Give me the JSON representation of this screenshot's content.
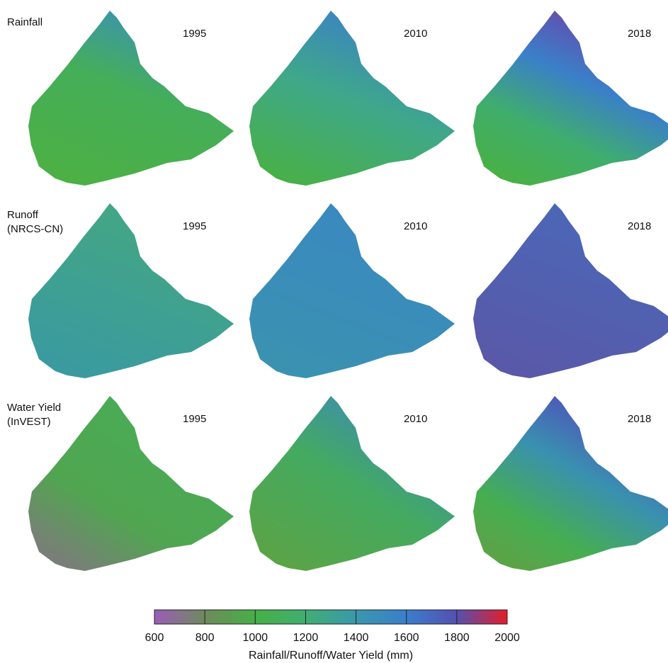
{
  "rows": [
    {
      "label": [
        "Rainfall"
      ],
      "maps": [
        {
          "year": "1995"
        },
        {
          "year": "2010"
        },
        {
          "year": "2018"
        }
      ]
    },
    {
      "label": [
        "Runoff",
        "(NRCS-CN)"
      ],
      "maps": [
        {
          "year": "1995"
        },
        {
          "year": "2010"
        },
        {
          "year": "2018"
        }
      ]
    },
    {
      "label": [
        "Water Yield",
        "(InVEST)"
      ],
      "maps": [
        {
          "year": "1995"
        },
        {
          "year": "2010"
        },
        {
          "year": "2018"
        }
      ]
    }
  ],
  "colorbar": {
    "label": "Rainfall/Runoff/Water Yield (mm)",
    "range": [
      600,
      2000
    ],
    "ticks": [
      600,
      800,
      1000,
      1200,
      1400,
      1600,
      1800,
      2000
    ]
  }
}
